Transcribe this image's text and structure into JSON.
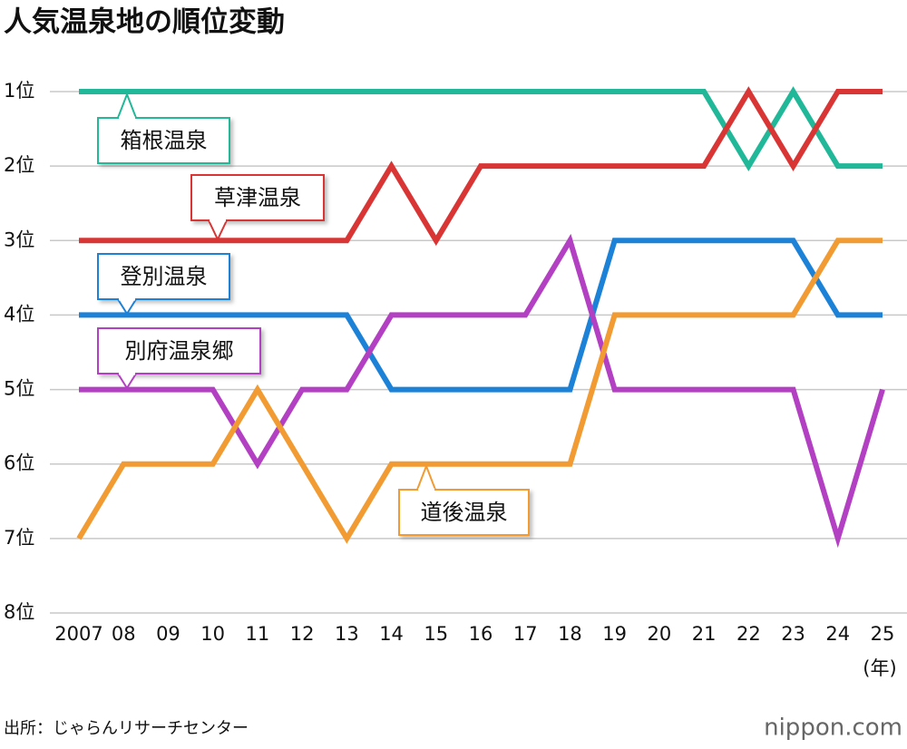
{
  "chart_data": {
    "type": "line",
    "title": "人気温泉地の順位変動",
    "categories": [
      "2007",
      "08",
      "09",
      "10",
      "11",
      "12",
      "13",
      "14",
      "15",
      "16",
      "17",
      "18",
      "19",
      "20",
      "21",
      "22",
      "23",
      "24",
      "25"
    ],
    "xlabel": "(年)",
    "ylim": [
      8,
      1
    ],
    "yticks": [
      {
        "value": 1,
        "label": "1位"
      },
      {
        "value": 2,
        "label": "2位"
      },
      {
        "value": 3,
        "label": "3位"
      },
      {
        "value": 4,
        "label": "4位"
      },
      {
        "value": 5,
        "label": "5位"
      },
      {
        "value": 6,
        "label": "6位"
      },
      {
        "value": 7,
        "label": "7位"
      },
      {
        "value": 8,
        "label": "8位"
      }
    ],
    "grid": true,
    "series": [
      {
        "name": "箱根温泉",
        "color": "#20b898",
        "values": [
          1,
          1,
          1,
          1,
          1,
          1,
          1,
          1,
          1,
          1,
          1,
          1,
          1,
          1,
          1,
          2,
          1,
          2,
          2
        ]
      },
      {
        "name": "草津温泉",
        "color": "#d93535",
        "values": [
          3,
          3,
          3,
          3,
          3,
          3,
          3,
          2,
          3,
          2,
          2,
          2,
          2,
          2,
          2,
          1,
          2,
          1,
          1
        ]
      },
      {
        "name": "登別温泉",
        "color": "#1c82d8",
        "values": [
          4,
          4,
          4,
          4,
          4,
          4,
          4,
          5,
          5,
          5,
          5,
          5,
          3,
          3,
          3,
          3,
          3,
          4,
          4
        ]
      },
      {
        "name": "別府温泉郷",
        "color": "#b340c2",
        "values": [
          5,
          5,
          5,
          5,
          6,
          5,
          5,
          4,
          4,
          4,
          4,
          3,
          5,
          5,
          5,
          5,
          5,
          7,
          5
        ]
      },
      {
        "name": "道後温泉",
        "color": "#f19b32",
        "values": [
          7,
          6,
          6,
          6,
          5,
          6,
          7,
          6,
          6,
          6,
          6,
          6,
          4,
          4,
          4,
          4,
          4,
          3,
          3
        ]
      }
    ],
    "source": "出所：じゃらんリサーチセンター"
  },
  "logo": "nippon.com"
}
